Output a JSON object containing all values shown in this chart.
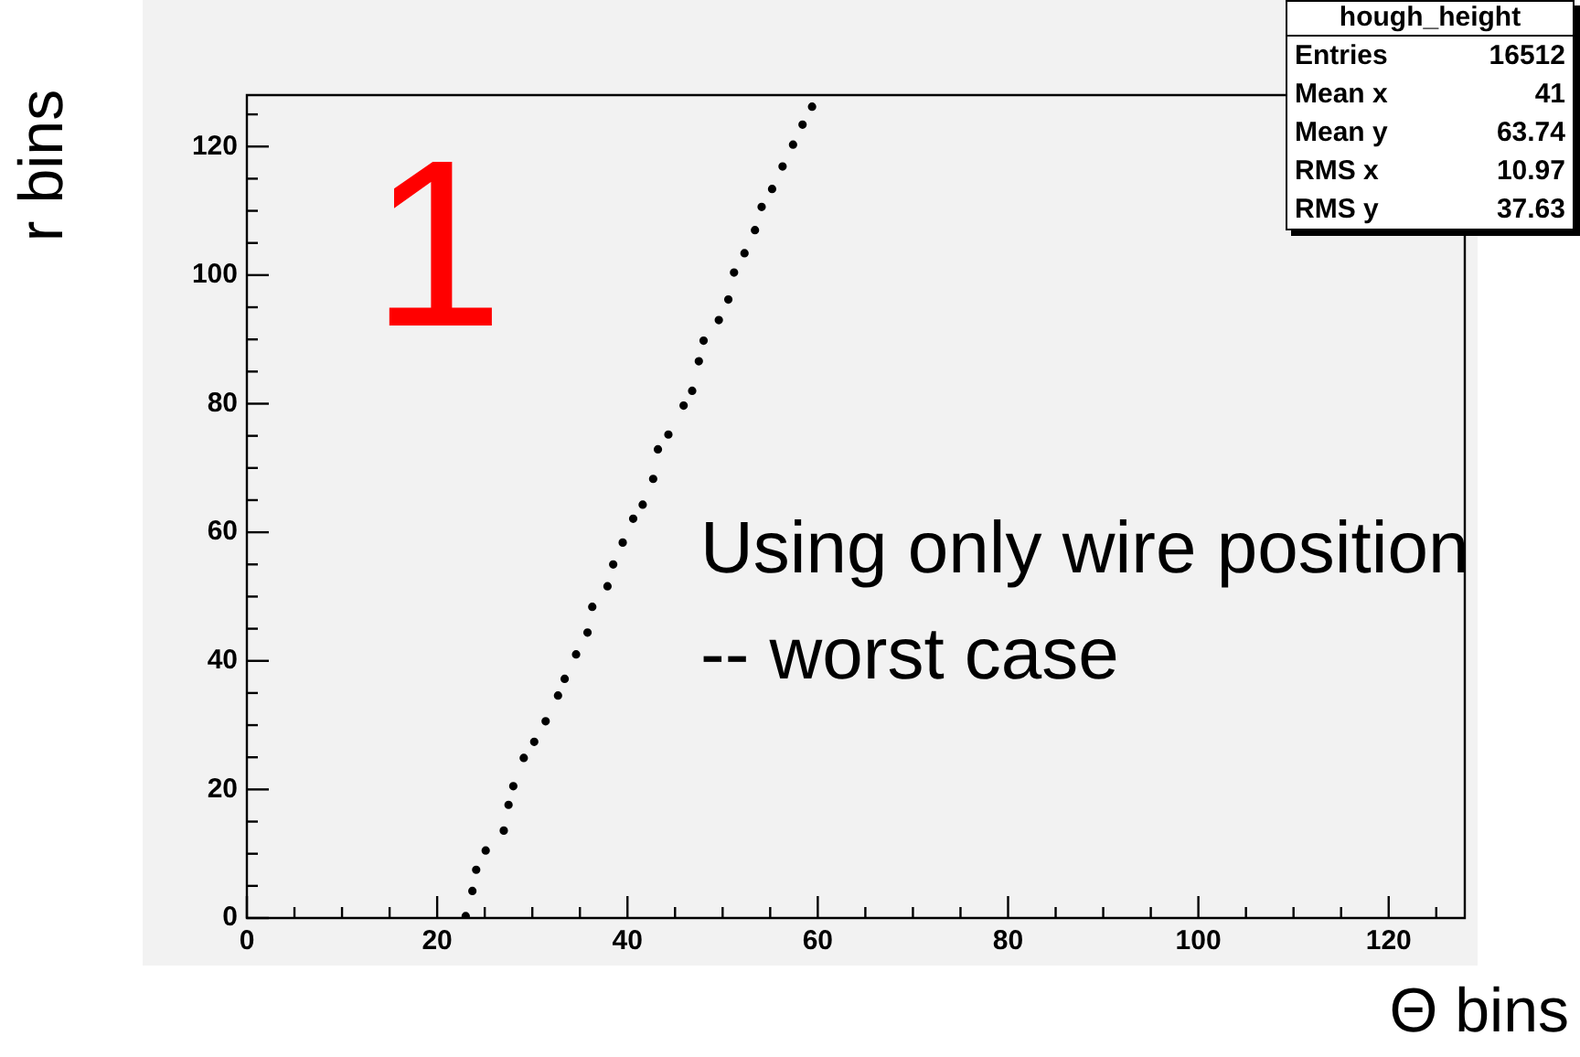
{
  "chart_data": {
    "type": "scatter",
    "xlabel": "Θ bins",
    "ylabel": "r bins",
    "annotations": [
      "1",
      "Using only wire position",
      "-- worst case",
      "hough_height",
      "Entries 16512",
      "Mean x 41",
      "Mean y 63.74",
      "RMS x 10.97",
      "RMS y 37.63"
    ],
    "x": [
      23,
      23.7,
      24.1,
      25.1,
      27.0,
      27.5,
      28.0,
      29.1,
      30.2,
      31.4,
      32.7,
      33.4,
      34.6,
      35.8,
      36.3,
      37.9,
      38.5,
      39.5,
      40.6,
      41.6,
      42.7,
      43.2,
      44.3,
      45.9,
      46.8,
      47.5,
      48.0,
      49.6,
      50.6,
      51.2,
      52.3,
      53.4,
      54.1,
      55.2,
      56.3,
      57.4,
      58.4,
      59.4
    ],
    "series": [
      {
        "color": "#000000",
        "values": [
          0.3,
          4.2,
          7.5,
          10.5,
          13.6,
          17.6,
          20.5,
          24.9,
          27.4,
          30.6,
          34.6,
          37.2,
          41.0,
          44.4,
          48.4,
          51.6,
          55.0,
          58.4,
          62.1,
          64.3,
          68.3,
          72.9,
          75.2,
          79.7,
          82.0,
          86.6,
          89.8,
          93.0,
          96.2,
          100.4,
          103.4,
          107.0,
          110.6,
          113.4,
          116.9,
          120.3,
          123.4,
          126.2
        ]
      }
    ],
    "xlim": [
      0,
      128
    ],
    "ylim": [
      0,
      128
    ],
    "xticks": [
      0,
      {
        "value": 5,
        "label": null
      },
      {
        "value": 10,
        "label": null
      },
      {
        "value": 15,
        "label": null
      },
      20,
      {
        "value": 25,
        "label": null
      },
      {
        "value": 30,
        "label": null
      },
      {
        "value": 35,
        "label": null
      },
      40,
      {
        "value": 45,
        "label": null
      },
      {
        "value": 50,
        "label": null
      },
      {
        "value": 55,
        "label": null
      },
      60,
      {
        "value": 65,
        "label": null
      },
      {
        "value": 70,
        "label": null
      },
      {
        "value": 75,
        "label": null
      },
      80,
      {
        "value": 85,
        "label": null
      },
      {
        "value": 90,
        "label": null
      },
      {
        "value": 95,
        "label": null
      },
      100,
      {
        "value": 105,
        "label": null
      },
      {
        "value": 110,
        "label": null
      },
      {
        "value": 115,
        "label": null
      },
      120,
      {
        "value": 125,
        "label": null
      }
    ],
    "yticks": [
      0,
      {
        "value": 5,
        "label": null
      },
      {
        "value": 10,
        "label": null
      },
      {
        "value": 15,
        "label": null
      },
      20,
      {
        "value": 25,
        "label": null
      },
      {
        "value": 30,
        "label": null
      },
      {
        "value": 35,
        "label": null
      },
      40,
      {
        "value": 45,
        "label": null
      },
      {
        "value": 50,
        "label": null
      },
      {
        "value": 55,
        "label": null
      },
      60,
      {
        "value": 65,
        "label": null
      },
      {
        "value": 70,
        "label": null
      },
      {
        "value": 75,
        "label": null
      },
      80,
      {
        "value": 85,
        "label": null
      },
      {
        "value": 90,
        "label": null
      },
      {
        "value": 95,
        "label": null
      },
      100,
      {
        "value": 105,
        "label": null
      },
      {
        "value": 110,
        "label": null
      },
      {
        "value": 115,
        "label": null
      },
      120,
      {
        "value": 125,
        "label": null
      }
    ],
    "grid": false,
    "legend": false,
    "marker": "circle"
  }
}
